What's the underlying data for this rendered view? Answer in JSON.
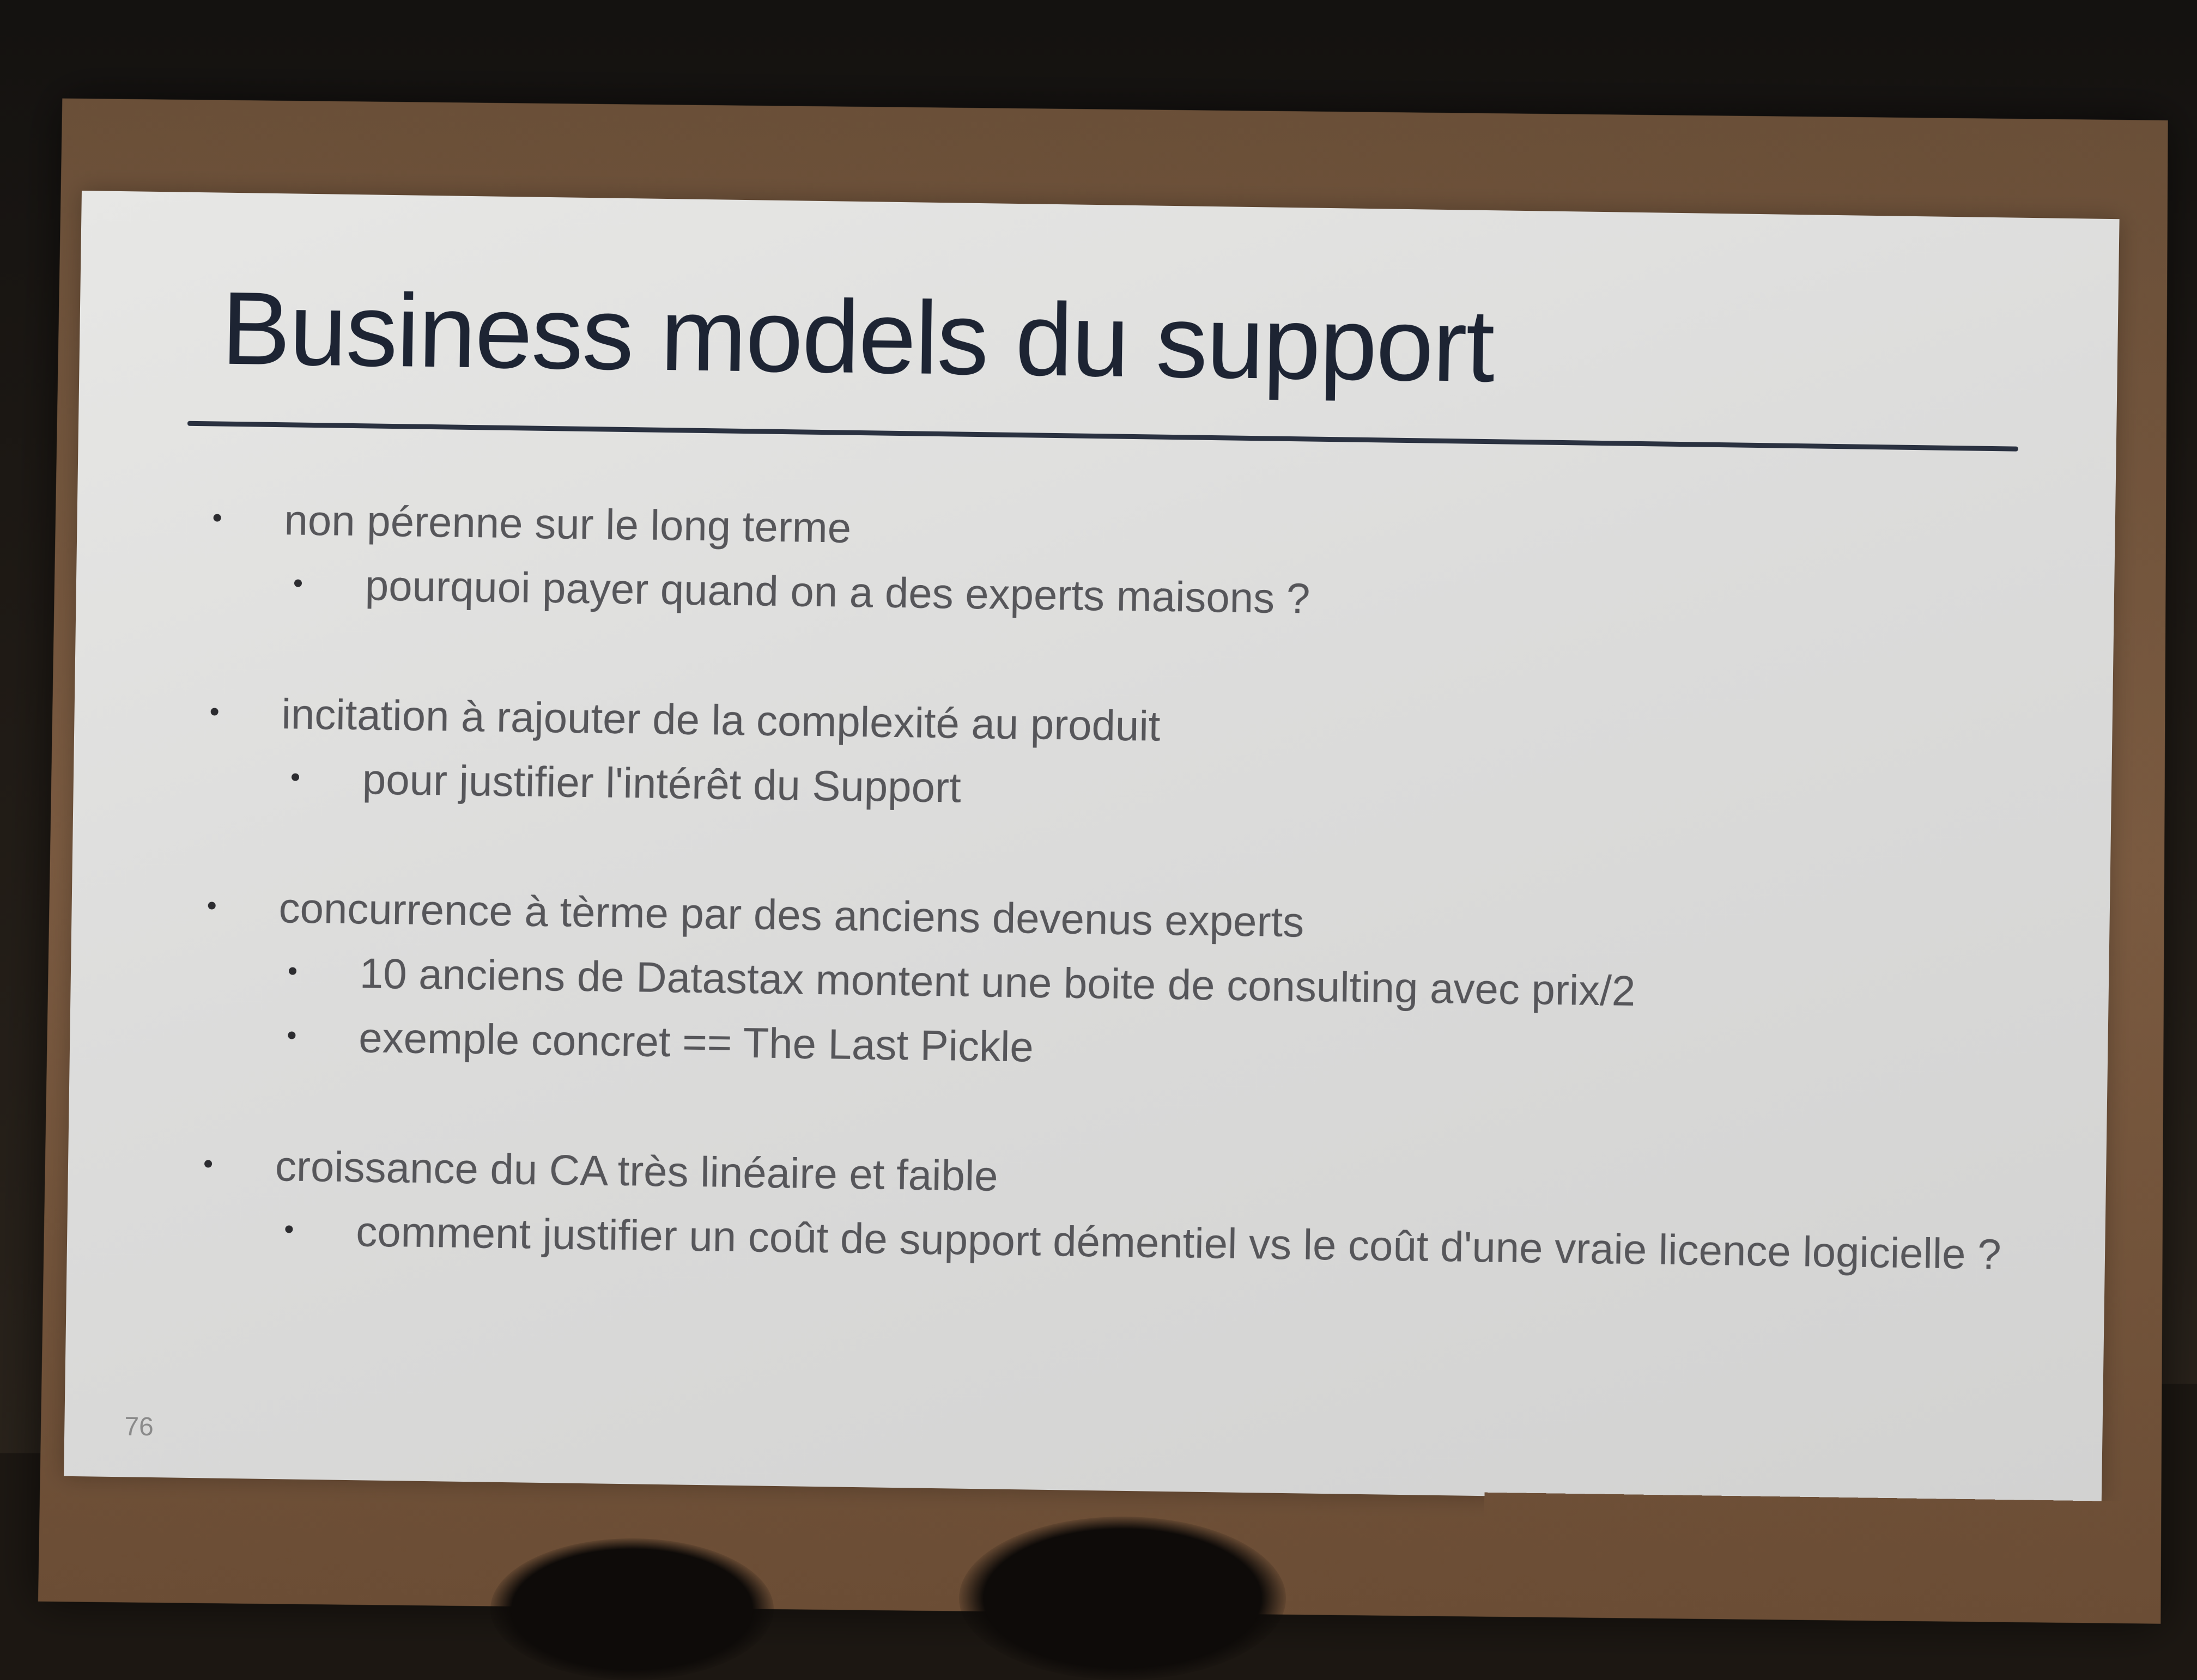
{
  "slide": {
    "title": "Business models du support",
    "page_number": "76",
    "groups": [
      {
        "main": "non pérenne sur le long terme",
        "subs": [
          "pourquoi payer quand on a des experts maisons ?"
        ]
      },
      {
        "main": "incitation à rajouter de la complexité au produit",
        "subs": [
          "pour justifier l'intérêt du Support"
        ]
      },
      {
        "main": "concurrence à tèrme par des anciens devenus experts",
        "subs": [
          "10 anciens de Datastax montent une boite de consulting avec prix/2",
          "exemple concret == The Last Pickle"
        ]
      },
      {
        "main": "croissance du CA très linéaire et faible",
        "subs": [
          "comment justifier un coût de support démentiel vs le coût d'une vraie licence logicielle ?"
        ]
      }
    ]
  },
  "colors": {
    "slide_background": "#dcdcdb",
    "title_text": "#1d2433",
    "body_text": "#56565a",
    "frame": "#7a5a40"
  }
}
